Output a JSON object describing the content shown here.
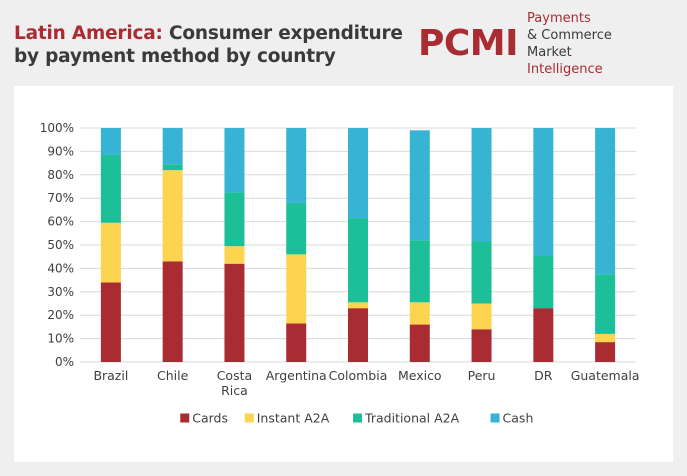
{
  "header": {
    "title_prefix": "Latin America:",
    "title_rest_line1": " Consumer expenditure",
    "title_line2": "by payment method by country",
    "logo": "PCMI",
    "tagline_word1": "Payments",
    "tagline_amp": " & Commerce",
    "tagline_line2_a": "Market ",
    "tagline_line2_b": "Intelligence"
  },
  "colors": {
    "Cards": "#a92c33",
    "Instant A2A": "#fdd450",
    "Traditional A2A": "#1cbf98",
    "Cash": "#37b3d4",
    "title_accent": "#a92c33"
  },
  "chart_data": {
    "type": "bar",
    "stacked": true,
    "title": "Latin America: Consumer expenditure by payment method by country",
    "categories": [
      "Brazil",
      "Chile",
      "Costa Rica",
      "Argentina",
      "Colombia",
      "Mexico",
      "Peru",
      "DR",
      "Guatemala"
    ],
    "category_lines": [
      [
        "Brazil"
      ],
      [
        "Chile"
      ],
      [
        "Costa",
        "Rica"
      ],
      [
        "Argentina"
      ],
      [
        "Colombia"
      ],
      [
        "Mexico"
      ],
      [
        "Peru"
      ],
      [
        "DR"
      ],
      [
        "Guatemala"
      ]
    ],
    "series": [
      {
        "name": "Cards",
        "values": [
          34,
          43,
          42,
          16.5,
          23,
          16,
          14,
          23,
          8.5
        ]
      },
      {
        "name": "Instant A2A",
        "values": [
          25.5,
          39,
          7.5,
          29.5,
          2.5,
          9.5,
          11,
          0,
          3.5
        ]
      },
      {
        "name": "Traditional A2A",
        "values": [
          29,
          2.5,
          23,
          22,
          36,
          26.5,
          26.5,
          22.5,
          25.5
        ]
      },
      {
        "name": "Cash",
        "values": [
          11.5,
          15.5,
          27.5,
          32,
          38.5,
          47,
          48.5,
          54.5,
          62.5
        ]
      }
    ],
    "ylim": [
      0,
      100
    ],
    "yticks": [
      "0%",
      "10%",
      "20%",
      "30%",
      "40%",
      "50%",
      "60%",
      "70%",
      "80%",
      "90%",
      "100%"
    ],
    "xlabel": "",
    "ylabel": "",
    "legend_position": "bottom"
  }
}
